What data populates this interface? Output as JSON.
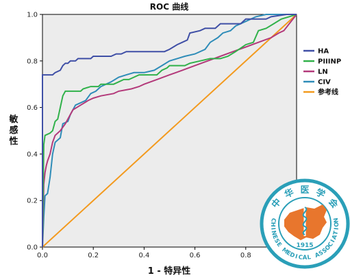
{
  "chart_data": {
    "type": "line",
    "title": "ROC 曲线",
    "xlabel": "1 - 特异性",
    "ylabel": "敏感性",
    "xlim": [
      0,
      1
    ],
    "ylim": [
      0,
      1
    ],
    "xticks": [
      "0.0",
      "0.2",
      "0.4",
      "0.6",
      "0.8",
      "1.0"
    ],
    "yticks": [
      "0.0",
      "0.2",
      "0.4",
      "0.6",
      "0.8",
      "1.0"
    ],
    "legend_position": "right",
    "grid": false,
    "background_color": "#ececec",
    "series": [
      {
        "name": "HA",
        "color": "#3f4fa6",
        "points": [
          [
            0,
            0
          ],
          [
            0,
            0.74
          ],
          [
            0.04,
            0.74
          ],
          [
            0.05,
            0.75
          ],
          [
            0.07,
            0.76
          ],
          [
            0.08,
            0.78
          ],
          [
            0.09,
            0.79
          ],
          [
            0.1,
            0.79
          ],
          [
            0.11,
            0.8
          ],
          [
            0.13,
            0.8
          ],
          [
            0.14,
            0.81
          ],
          [
            0.19,
            0.81
          ],
          [
            0.2,
            0.82
          ],
          [
            0.27,
            0.82
          ],
          [
            0.29,
            0.83
          ],
          [
            0.31,
            0.83
          ],
          [
            0.33,
            0.84
          ],
          [
            0.48,
            0.84
          ],
          [
            0.5,
            0.85
          ],
          [
            0.53,
            0.87
          ],
          [
            0.55,
            0.88
          ],
          [
            0.57,
            0.89
          ],
          [
            0.58,
            0.92
          ],
          [
            0.62,
            0.93
          ],
          [
            0.64,
            0.94
          ],
          [
            0.68,
            0.94
          ],
          [
            0.7,
            0.96
          ],
          [
            0.78,
            0.96
          ],
          [
            0.8,
            0.98
          ],
          [
            0.88,
            0.98
          ],
          [
            0.9,
            0.99
          ],
          [
            0.96,
            1.0
          ],
          [
            1,
            1
          ]
        ]
      },
      {
        "name": "PIIINP",
        "color": "#30b14a",
        "points": [
          [
            0,
            0
          ],
          [
            0.005,
            0.44
          ],
          [
            0.01,
            0.48
          ],
          [
            0.03,
            0.49
          ],
          [
            0.04,
            0.5
          ],
          [
            0.05,
            0.54
          ],
          [
            0.06,
            0.55
          ],
          [
            0.07,
            0.6
          ],
          [
            0.08,
            0.65
          ],
          [
            0.09,
            0.67
          ],
          [
            0.15,
            0.67
          ],
          [
            0.16,
            0.68
          ],
          [
            0.19,
            0.69
          ],
          [
            0.22,
            0.69
          ],
          [
            0.23,
            0.7
          ],
          [
            0.28,
            0.7
          ],
          [
            0.3,
            0.71
          ],
          [
            0.32,
            0.72
          ],
          [
            0.34,
            0.72
          ],
          [
            0.36,
            0.73
          ],
          [
            0.38,
            0.74
          ],
          [
            0.45,
            0.74
          ],
          [
            0.47,
            0.76
          ],
          [
            0.49,
            0.77
          ],
          [
            0.5,
            0.78
          ],
          [
            0.56,
            0.78
          ],
          [
            0.58,
            0.79
          ],
          [
            0.62,
            0.8
          ],
          [
            0.66,
            0.81
          ],
          [
            0.7,
            0.81
          ],
          [
            0.73,
            0.82
          ],
          [
            0.76,
            0.84
          ],
          [
            0.8,
            0.87
          ],
          [
            0.83,
            0.88
          ],
          [
            0.85,
            0.93
          ],
          [
            0.88,
            0.94
          ],
          [
            0.91,
            0.96
          ],
          [
            0.94,
            0.98
          ],
          [
            0.97,
            0.99
          ],
          [
            1,
            1
          ]
        ]
      },
      {
        "name": "LN",
        "color": "#b3397a",
        "points": [
          [
            0,
            0
          ],
          [
            0.005,
            0.27
          ],
          [
            0.01,
            0.32
          ],
          [
            0.015,
            0.35
          ],
          [
            0.02,
            0.37
          ],
          [
            0.03,
            0.4
          ],
          [
            0.04,
            0.45
          ],
          [
            0.05,
            0.48
          ],
          [
            0.07,
            0.5
          ],
          [
            0.09,
            0.53
          ],
          [
            0.1,
            0.55
          ],
          [
            0.12,
            0.59
          ],
          [
            0.15,
            0.61
          ],
          [
            0.18,
            0.63
          ],
          [
            0.2,
            0.64
          ],
          [
            0.23,
            0.65
          ],
          [
            0.28,
            0.66
          ],
          [
            0.3,
            0.67
          ],
          [
            0.35,
            0.68
          ],
          [
            0.38,
            0.69
          ],
          [
            0.4,
            0.7
          ],
          [
            0.45,
            0.72
          ],
          [
            0.5,
            0.74
          ],
          [
            0.55,
            0.76
          ],
          [
            0.6,
            0.78
          ],
          [
            0.65,
            0.8
          ],
          [
            0.7,
            0.82
          ],
          [
            0.75,
            0.84
          ],
          [
            0.8,
            0.86
          ],
          [
            0.85,
            0.88
          ],
          [
            0.9,
            0.9
          ],
          [
            0.93,
            0.92
          ],
          [
            0.95,
            0.93
          ],
          [
            1,
            1
          ]
        ]
      },
      {
        "name": "CIV",
        "color": "#2e8cb8",
        "points": [
          [
            0,
            0
          ],
          [
            0.005,
            0.13
          ],
          [
            0.01,
            0.22
          ],
          [
            0.02,
            0.23
          ],
          [
            0.03,
            0.3
          ],
          [
            0.04,
            0.4
          ],
          [
            0.05,
            0.45
          ],
          [
            0.07,
            0.47
          ],
          [
            0.08,
            0.53
          ],
          [
            0.1,
            0.54
          ],
          [
            0.11,
            0.57
          ],
          [
            0.13,
            0.61
          ],
          [
            0.15,
            0.62
          ],
          [
            0.17,
            0.63
          ],
          [
            0.19,
            0.66
          ],
          [
            0.21,
            0.67
          ],
          [
            0.23,
            0.69
          ],
          [
            0.25,
            0.7
          ],
          [
            0.27,
            0.71
          ],
          [
            0.3,
            0.73
          ],
          [
            0.33,
            0.74
          ],
          [
            0.36,
            0.75
          ],
          [
            0.4,
            0.75
          ],
          [
            0.44,
            0.76
          ],
          [
            0.47,
            0.78
          ],
          [
            0.5,
            0.8
          ],
          [
            0.53,
            0.81
          ],
          [
            0.56,
            0.82
          ],
          [
            0.6,
            0.83
          ],
          [
            0.64,
            0.85
          ],
          [
            0.66,
            0.88
          ],
          [
            0.69,
            0.9
          ],
          [
            0.71,
            0.92
          ],
          [
            0.74,
            0.93
          ],
          [
            0.76,
            0.95
          ],
          [
            0.8,
            0.97
          ],
          [
            0.84,
            0.99
          ],
          [
            0.88,
            1.0
          ],
          [
            1,
            1
          ]
        ]
      },
      {
        "name": "参考线",
        "color": "#f39a1e",
        "points": [
          [
            0,
            0
          ],
          [
            1,
            1
          ]
        ]
      }
    ]
  },
  "watermark": {
    "text_top": "中 华 医 学 会",
    "text_bottom": "CHINESE MEDICAL ASSOCIATION",
    "year": "1915",
    "border_color": "#2a9fb8",
    "map_color": "#e8762d"
  }
}
